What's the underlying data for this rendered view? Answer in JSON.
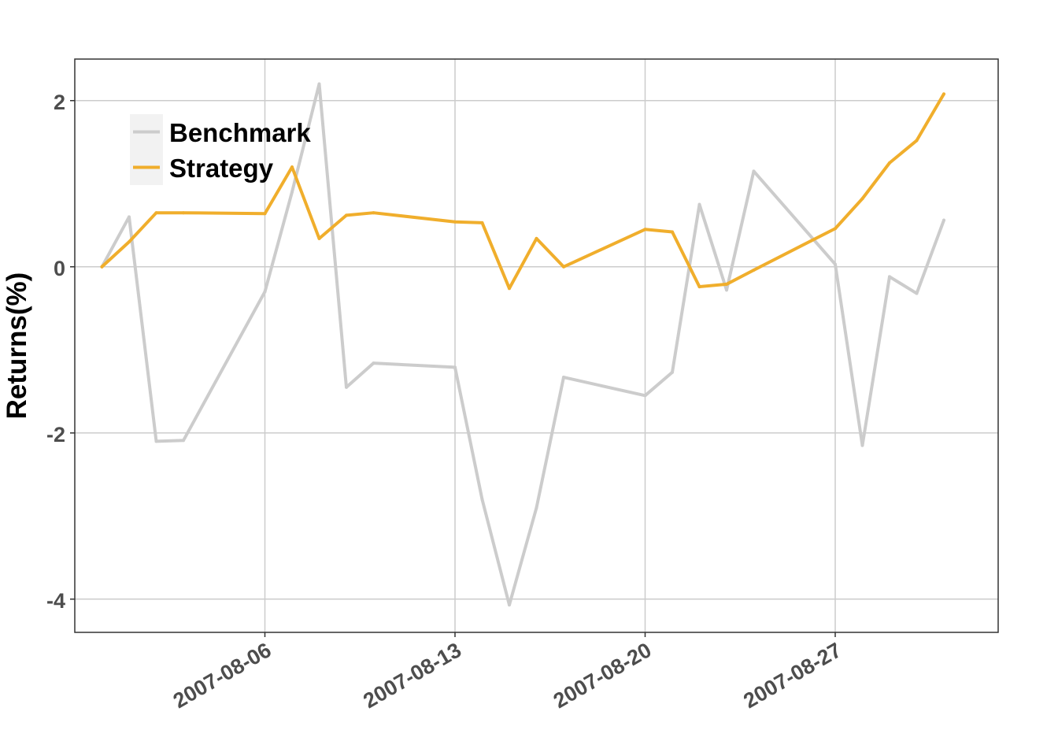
{
  "chart_data": {
    "type": "line",
    "title": "",
    "xlabel": "",
    "ylabel": "Returns(%)",
    "ylim": [
      -4.4,
      2.5
    ],
    "xlim": [
      "2007-07-30",
      "2007-09-02"
    ],
    "grid": true,
    "legend_position": "top-left",
    "x": [
      "2007-07-31",
      "2007-08-01",
      "2007-08-02",
      "2007-08-03",
      "2007-08-06",
      "2007-08-07",
      "2007-08-08",
      "2007-08-09",
      "2007-08-10",
      "2007-08-13",
      "2007-08-14",
      "2007-08-15",
      "2007-08-16",
      "2007-08-17",
      "2007-08-20",
      "2007-08-21",
      "2007-08-22",
      "2007-08-23",
      "2007-08-24",
      "2007-08-27",
      "2007-08-28",
      "2007-08-29",
      "2007-08-30",
      "2007-08-31"
    ],
    "x_ticks": [
      "2007-08-06",
      "2007-08-13",
      "2007-08-20",
      "2007-08-27"
    ],
    "y_ticks": [
      -4,
      -2,
      0,
      2
    ],
    "y_tick_labels": [
      "-4",
      "-2",
      "0",
      "2"
    ],
    "series": [
      {
        "name": "Benchmark",
        "color": "#cccccc",
        "values": [
          0.0,
          0.6,
          -2.1,
          -2.09,
          -0.3,
          0.9,
          2.2,
          -1.45,
          -1.16,
          -1.21,
          -2.8,
          -4.07,
          -2.9,
          -1.33,
          -1.55,
          -1.27,
          0.75,
          -0.28,
          1.15,
          0.03,
          -2.15,
          -0.12,
          -0.32,
          0.56
        ]
      },
      {
        "name": "Strategy",
        "color": "#f0ae2c",
        "values": [
          0.0,
          0.3,
          0.65,
          0.65,
          0.64,
          1.2,
          0.34,
          0.62,
          0.65,
          0.54,
          0.53,
          -0.26,
          0.34,
          0.0,
          0.45,
          0.42,
          -0.24,
          -0.21,
          -0.04,
          0.46,
          0.82,
          1.25,
          1.52,
          2.08
        ]
      }
    ]
  }
}
